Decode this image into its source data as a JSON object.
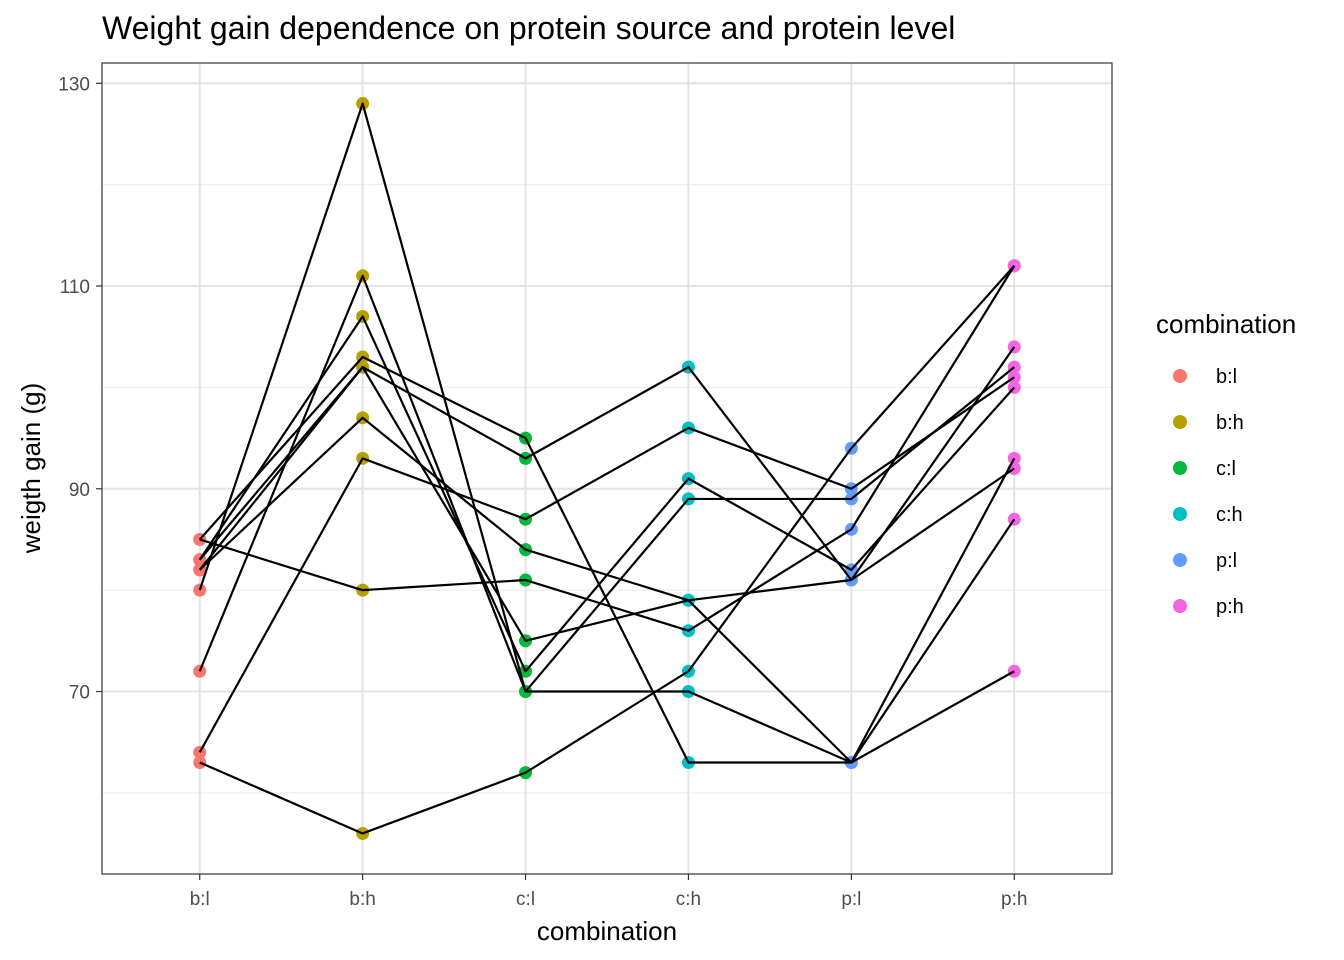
{
  "chart_data": {
    "type": "line",
    "title": "Weight gain dependence on protein source and protein level",
    "xlabel": "combination",
    "ylabel": "weigth gain (g)",
    "categories": [
      "b:l",
      "b:h",
      "c:l",
      "c:h",
      "p:l",
      "p:h"
    ],
    "yticks": [
      70,
      90,
      110,
      130
    ],
    "ylim": [
      52,
      132
    ],
    "grid": true,
    "legend": {
      "title": "combination",
      "position": "right",
      "entries": [
        {
          "label": "b:l",
          "color": "#F8766D"
        },
        {
          "label": "b:h",
          "color": "#B79F00"
        },
        {
          "label": "c:l",
          "color": "#00BA38"
        },
        {
          "label": "c:h",
          "color": "#00BFC4"
        },
        {
          "label": "p:l",
          "color": "#619CFF"
        },
        {
          "label": "p:h",
          "color": "#F564E3"
        }
      ]
    },
    "series": [
      {
        "values": [
          85,
          103,
          95,
          63,
          63,
          87
        ]
      },
      {
        "values": [
          83,
          107,
          72,
          91,
          82,
          100
        ]
      },
      {
        "values": [
          82,
          102,
          93,
          102,
          81,
          104
        ]
      },
      {
        "values": [
          80,
          128,
          70,
          70,
          63,
          93
        ]
      },
      {
        "values": [
          72,
          111,
          70,
          89,
          89,
          102
        ]
      },
      {
        "values": [
          64,
          93,
          87,
          96,
          90,
          101
        ]
      },
      {
        "values": [
          63,
          56,
          62,
          72,
          94,
          112
        ]
      },
      {
        "values": [
          82,
          97,
          84,
          79,
          81,
          92
        ]
      },
      {
        "values": [
          85,
          80,
          81,
          76,
          86,
          112
        ]
      },
      {
        "values": [
          83,
          102,
          75,
          79,
          63,
          72
        ]
      }
    ]
  }
}
